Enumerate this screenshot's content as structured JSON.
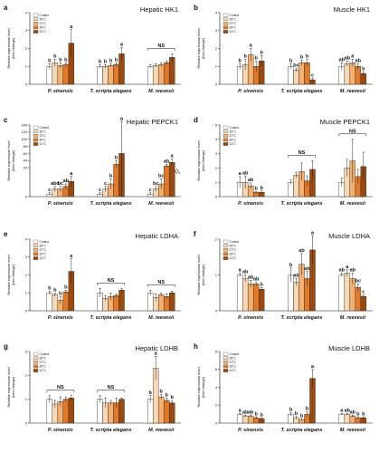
{
  "colors": {
    "Control": "#ffffff",
    "35°C": "#f8d9b5",
    "37°C": "#f3b070",
    "39°C": "#e07a2a",
    "41°C": "#9a4a0e",
    "stroke": "#222222",
    "error": "#111111"
  },
  "legend_entries": [
    "Control",
    "35°C",
    "37°C",
    "39°C",
    "41°C"
  ],
  "chart_data": [
    {
      "panel": "a",
      "title": "Hepatic HK1",
      "type": "bar",
      "ylabel": "Relative expression level",
      "ylabel2": "(fold change)",
      "ylim": [
        0,
        4
      ],
      "yticks": [
        0,
        1,
        2,
        3,
        4
      ],
      "legend": "top-left",
      "categories": [
        "P. sinensis",
        "T. scripta elegans",
        "M. reevesii"
      ],
      "values": [
        [
          1,
          1.2,
          1.05,
          1.1,
          2.3
        ],
        [
          1,
          1.0,
          1.05,
          1.1,
          1.7
        ],
        [
          1,
          1.05,
          1.1,
          1.2,
          1.5
        ]
      ],
      "errors": [
        [
          0.15,
          0.2,
          0.15,
          0.1,
          0.75
        ],
        [
          0.1,
          0.1,
          0.1,
          0.1,
          0.35
        ],
        [
          0.1,
          0.1,
          0.1,
          0.1,
          0.2
        ]
      ],
      "letters": [
        [
          "b",
          "b",
          "b",
          "b",
          "a"
        ],
        [
          "b",
          "b",
          "b",
          "b",
          "a"
        ],
        [
          "",
          "",
          "",
          "",
          ""
        ]
      ],
      "ns": [
        false,
        false,
        true
      ]
    },
    {
      "panel": "b",
      "title": "Muscle HK1",
      "type": "bar",
      "ylabel": "Relative expression level",
      "ylabel2": "(fold change)",
      "ylim": [
        0,
        4
      ],
      "yticks": [
        0,
        1,
        2,
        3,
        4
      ],
      "legend": "top-left",
      "categories": [
        "P. sinensis",
        "T. scripta elegans",
        "M. reevesii"
      ],
      "values": [
        [
          1,
          1.1,
          1.65,
          1.0,
          1.3
        ],
        [
          1,
          0.8,
          1.2,
          1.2,
          0.25
        ],
        [
          1,
          1.15,
          1.2,
          1.0,
          0.6
        ]
      ],
      "errors": [
        [
          0.15,
          0.3,
          0.35,
          0.3,
          0.3
        ],
        [
          0.15,
          0.1,
          0.15,
          0.2,
          0.1
        ],
        [
          0.2,
          0.15,
          0.2,
          0.15,
          0.1
        ]
      ],
      "letters": [
        [
          "b",
          "b",
          "a",
          "b",
          "b"
        ],
        [
          "b",
          "bc",
          "b",
          "b",
          "c"
        ],
        [
          "ab",
          "ab",
          "a",
          "ab",
          "b"
        ]
      ],
      "ns": [
        false,
        false,
        false
      ]
    },
    {
      "panel": "c",
      "title": "Hepatic PEPCK1",
      "type": "bar",
      "broken_axis": true,
      "ylabel": "Relative expression level",
      "ylabel2": "(fold change)",
      "yticks": [
        0,
        20,
        40,
        60,
        80,
        100,
        120,
        140
      ],
      "legend": "top-left",
      "categories": [
        "P. sinensis",
        "T. scripta elegans",
        "M. reevesii"
      ],
      "values": [
        [
          1,
          3,
          3,
          4,
          6
        ],
        [
          1,
          3,
          5,
          30,
          60
        ],
        [
          1,
          3,
          5,
          25,
          35
        ]
      ],
      "errors": [
        [
          0.5,
          1,
          1,
          1,
          2
        ],
        [
          0.5,
          1,
          2,
          10,
          90
        ],
        [
          0.5,
          1,
          2,
          5,
          10
        ]
      ],
      "letters": [
        [
          "c",
          "abc",
          "bc",
          "ab",
          "a"
        ],
        [
          "c",
          "c",
          "b",
          "b",
          "a"
        ],
        [
          "c",
          "bc",
          "bc",
          "ab",
          "a"
        ]
      ],
      "ns": [
        false,
        false,
        false
      ]
    },
    {
      "panel": "d",
      "title": "Muscle PEPCK1",
      "type": "bar",
      "ylabel": "Relative expression level",
      "ylabel2": "(fold change)",
      "ylim": [
        0,
        5
      ],
      "yticks": [
        0,
        1,
        2,
        3,
        4,
        5
      ],
      "legend": "top-left",
      "categories": [
        "P. sinensis",
        "T. scripta elegans",
        "M. reevesii"
      ],
      "values": [
        [
          1,
          1.0,
          0.75,
          0.3,
          0.3
        ],
        [
          1,
          1.5,
          1.75,
          1.1,
          1.9
        ],
        [
          1,
          2.0,
          2.5,
          1.4,
          2.1
        ]
      ],
      "errors": [
        [
          0.4,
          0.45,
          0.2,
          0.05,
          0.1
        ],
        [
          0.15,
          0.2,
          0.6,
          0.35,
          0.6
        ],
        [
          0.3,
          0.6,
          1.5,
          0.5,
          1.0
        ]
      ],
      "letters": [
        [
          "a",
          "ab",
          "ab",
          "b",
          "b"
        ],
        [
          "",
          "",
          "",
          "",
          ""
        ],
        [
          "",
          "",
          "",
          "",
          ""
        ]
      ],
      "ns": [
        false,
        true,
        true
      ]
    },
    {
      "panel": "e",
      "title": "Hepatic LDHA",
      "type": "bar",
      "ylabel": "Relative expression level",
      "ylabel2": "(fold change)",
      "ylim": [
        0,
        4
      ],
      "yticks": [
        0,
        1,
        2,
        3,
        4
      ],
      "legend": "top-left",
      "categories": [
        "P. sinensis",
        "T. scripta elegans",
        "M. reevesii"
      ],
      "values": [
        [
          1,
          0.9,
          0.6,
          1.05,
          2.2
        ],
        [
          1,
          0.7,
          0.8,
          0.85,
          1.15
        ],
        [
          1,
          0.75,
          0.9,
          0.8,
          1.0
        ]
      ],
      "errors": [
        [
          0.1,
          0.1,
          0.2,
          0.1,
          0.7
        ],
        [
          0.25,
          0.15,
          0.2,
          0.1,
          0.1
        ],
        [
          0.15,
          0.2,
          0.1,
          0.15,
          0.1
        ]
      ],
      "letters": [
        [
          "b",
          "b",
          "b",
          "b",
          "a"
        ],
        [
          "",
          "",
          "",
          "",
          ""
        ],
        [
          "",
          "",
          "",
          "",
          ""
        ]
      ],
      "ns": [
        false,
        true,
        true
      ]
    },
    {
      "panel": "f",
      "title": "Muscle LDHA",
      "type": "bar",
      "ylabel": "Relative expression level",
      "ylabel2": "(fold change)",
      "ylim": [
        0,
        2
      ],
      "yticks": [
        0,
        1,
        2
      ],
      "legend": "top-left",
      "categories": [
        "P. sinensis",
        "T. scripta elegans",
        "M. reevesii"
      ],
      "values": [
        [
          1,
          0.9,
          0.75,
          0.75,
          0.6
        ],
        [
          1,
          0.8,
          1.3,
          0.9,
          1.7
        ],
        [
          1,
          1.05,
          0.9,
          0.65,
          0.4
        ]
      ],
      "errors": [
        [
          0.05,
          0.1,
          0.1,
          0.05,
          0.05
        ],
        [
          0.2,
          0.1,
          0.3,
          0.2,
          0.4
        ],
        [
          0.05,
          0.1,
          0.15,
          0.1,
          0.05
        ]
      ],
      "letters": [
        [
          "a",
          "ab",
          "ab",
          "ab",
          "b"
        ],
        [
          "b",
          "ab",
          "ab",
          "ab",
          "a"
        ],
        [
          "ab",
          "a",
          "ab",
          "bc",
          "c"
        ]
      ],
      "ns": [
        false,
        false,
        false
      ]
    },
    {
      "panel": "g",
      "title": "Hepatic LDHB",
      "type": "bar",
      "ylabel": "Relative expression level",
      "ylabel2": "(fold change)",
      "ylim": [
        0,
        3
      ],
      "yticks": [
        0,
        1,
        2,
        3
      ],
      "legend": "top-left",
      "categories": [
        "P. sinensis",
        "T. scripta elegans",
        "M. reevesii"
      ],
      "values": [
        [
          1,
          0.8,
          0.9,
          1.0,
          1.05
        ],
        [
          1,
          0.85,
          0.85,
          0.85,
          1.0
        ],
        [
          1,
          2.3,
          1.1,
          0.95,
          0.85
        ]
      ],
      "errors": [
        [
          0.15,
          0.15,
          0.2,
          0.1,
          0.1
        ],
        [
          0.15,
          0.2,
          0.1,
          0.2,
          0.05
        ],
        [
          0.15,
          0.5,
          0.1,
          0.1,
          0.1
        ]
      ],
      "letters": [
        [
          "",
          "",
          "",
          "",
          ""
        ],
        [
          "",
          "",
          "",
          "",
          ""
        ],
        [
          "b",
          "a",
          "b",
          "b",
          "b"
        ]
      ],
      "ns": [
        true,
        true,
        false
      ]
    },
    {
      "panel": "h",
      "title": "Muscle LDHB",
      "type": "bar",
      "ylabel": "Relative expression level",
      "ylabel2": "(fold change)",
      "ylim": [
        0,
        8
      ],
      "yticks": [
        0,
        2,
        4,
        6,
        8
      ],
      "legend": "top-left",
      "categories": [
        "P. sinensis",
        "T. scripta elegans",
        "M. reevesii"
      ],
      "values": [
        [
          1,
          0.8,
          0.8,
          0.6,
          0.5
        ],
        [
          1,
          0.6,
          0.4,
          1.0,
          5.0
        ],
        [
          1,
          1.0,
          0.8,
          0.6,
          0.6
        ]
      ],
      "errors": [
        [
          0.1,
          0.1,
          0.1,
          0.1,
          0.1
        ],
        [
          0.2,
          0.15,
          0.1,
          0.3,
          1.0
        ],
        [
          0.1,
          0.1,
          0.1,
          0.1,
          0.1
        ]
      ],
      "letters": [
        [
          "a",
          "ab",
          "ab",
          "b",
          "b"
        ],
        [
          "b",
          "b",
          "b",
          "b",
          "a"
        ],
        [
          "a",
          "ab",
          "ab",
          "b",
          "b"
        ]
      ],
      "ns": [
        false,
        false,
        false
      ]
    }
  ]
}
